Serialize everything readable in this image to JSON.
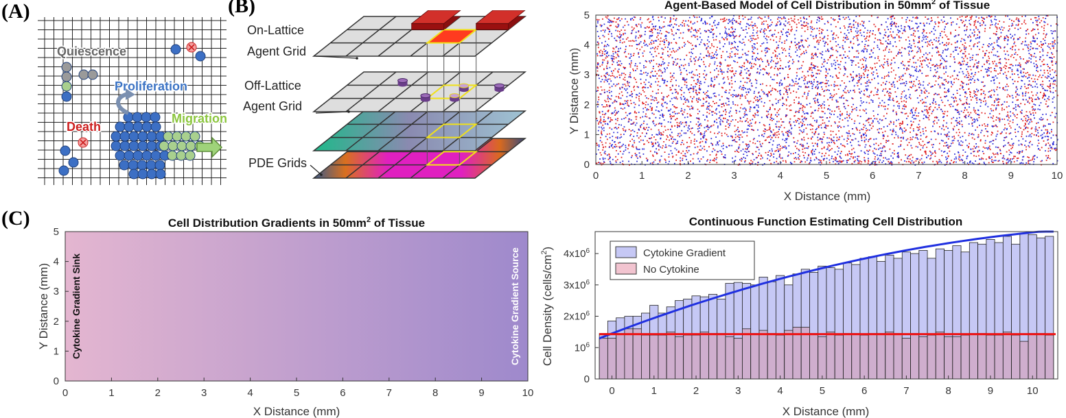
{
  "panels": {
    "a": "(A)",
    "b": "(B)",
    "c": "(C)"
  },
  "panel_a": {
    "labels": {
      "quiescence": "Quiescence",
      "proliferation": "Proliferation",
      "death": "Death",
      "migration": "Migration"
    },
    "colors": {
      "quiescence": "#666666",
      "proliferation": "#3b73c4",
      "death": "#cc1f1f",
      "migration": "#8cc63f",
      "cell_blue": "#3c6fc4",
      "cell_green": "#a9d08e",
      "cell_grey": "#9a9a9a"
    }
  },
  "panel_b": {
    "labels": {
      "on_lattice_1": "On-Lattice",
      "on_lattice_2": "Agent Grid",
      "off_lattice_1": "Off-Lattice",
      "off_lattice_2": "Agent Grid",
      "pde": "PDE Grids"
    }
  },
  "chart_data": [
    {
      "id": "abm-scatter",
      "type": "scatter",
      "title": "Agent-Based Model of Cell Distribution in 50mm",
      "title_sup": "2",
      "title_tail": " of Tissue",
      "xlabel": "X Distance (mm)",
      "ylabel": "Y Distance (mm)",
      "xlim": [
        0,
        10
      ],
      "ylim": [
        0,
        5
      ],
      "xticks": [
        "0",
        "1",
        "2",
        "3",
        "4",
        "5",
        "6",
        "7",
        "8",
        "9",
        "10"
      ],
      "yticks": [
        "0",
        "1",
        "2",
        "3",
        "4",
        "5"
      ],
      "series": [
        {
          "color": "#e02020"
        },
        {
          "color": "#2a2ad8"
        }
      ]
    },
    {
      "id": "gradient-map",
      "type": "heatmap",
      "title": "Cell Distribution Gradients in 50mm",
      "title_sup": "2",
      "title_tail": " of Tissue",
      "xlabel": "X Distance (mm)",
      "ylabel": "Y Distance (mm)",
      "xlim": [
        0,
        10
      ],
      "ylim": [
        0,
        5
      ],
      "xticks": [
        "0",
        "1",
        "2",
        "3",
        "4",
        "5",
        "6",
        "7",
        "8",
        "9",
        "10"
      ],
      "yticks": [
        "0",
        "1",
        "2",
        "3",
        "4",
        "5"
      ],
      "left_annotation": "Cytokine Gradient Sink",
      "right_annotation": "Cytokine Gradient Source",
      "color_left": "#e4b6d0",
      "color_right": "#9e89cc"
    },
    {
      "id": "density-bars",
      "type": "bar",
      "title": "Continuous Function Estimating Cell Distribution",
      "xlabel": "X Distance (mm)",
      "ylabel": "Cell Density (cells/cm",
      "ylabel_sup": "2",
      "ylabel_tail": ")",
      "xlim": [
        -0.4,
        10.6
      ],
      "ylim": [
        0,
        4.7
      ],
      "xticks": [
        "0",
        "1",
        "2",
        "3",
        "4",
        "5",
        "6",
        "7",
        "8",
        "9",
        "10"
      ],
      "yticks": [
        "0",
        "10",
        "2x10",
        "3x10",
        "4x10"
      ],
      "ytick_sup": "6",
      "x": [
        -0.2,
        0,
        0.2,
        0.4,
        0.6,
        0.8,
        1,
        1.2,
        1.4,
        1.6,
        1.8,
        2,
        2.2,
        2.4,
        2.6,
        2.8,
        3,
        3.2,
        3.4,
        3.6,
        3.8,
        4,
        4.2,
        4.4,
        4.6,
        4.8,
        5,
        5.2,
        5.4,
        5.6,
        5.8,
        6,
        6.2,
        6.4,
        6.6,
        6.8,
        7,
        7.2,
        7.4,
        7.6,
        7.8,
        8,
        8.2,
        8.4,
        8.6,
        8.8,
        9,
        9.2,
        9.4,
        9.6,
        9.8,
        10,
        10.2,
        10.4
      ],
      "series": [
        {
          "name": "Cytokine Gradient",
          "color": "#c6c8f5",
          "values": [
            1.45,
            1.85,
            1.95,
            2.0,
            2.0,
            2.1,
            2.35,
            2.1,
            2.3,
            2.5,
            2.55,
            2.65,
            2.62,
            2.7,
            2.55,
            3.05,
            3.08,
            3.05,
            3.0,
            3.25,
            3.1,
            3.3,
            3.0,
            3.35,
            3.5,
            3.4,
            3.6,
            3.55,
            3.5,
            3.7,
            3.65,
            3.85,
            3.9,
            3.75,
            3.95,
            3.85,
            4.05,
            4.0,
            4.1,
            3.85,
            4.15,
            4.1,
            4.25,
            4.05,
            4.35,
            4.3,
            4.45,
            4.35,
            4.55,
            4.3,
            4.65,
            4.6,
            4.5,
            4.55
          ]
        },
        {
          "name": "No Cytokine",
          "color": "#f2c4d0",
          "values": [
            1.3,
            1.3,
            1.45,
            1.6,
            1.6,
            1.4,
            1.4,
            1.4,
            1.5,
            1.35,
            1.4,
            1.4,
            1.5,
            1.45,
            1.45,
            1.35,
            1.3,
            1.6,
            1.45,
            1.55,
            1.45,
            1.4,
            1.55,
            1.65,
            1.65,
            1.45,
            1.35,
            1.5,
            1.4,
            1.45,
            1.45,
            1.4,
            1.45,
            1.45,
            1.5,
            1.45,
            1.3,
            1.45,
            1.35,
            1.4,
            1.5,
            1.35,
            1.35,
            1.4,
            1.45,
            1.45,
            1.4,
            1.4,
            1.5,
            1.4,
            1.2,
            1.45,
            1.45,
            1.4
          ]
        }
      ],
      "fit_lines": [
        {
          "color": "#1f2fe0",
          "equation": "1.45 + 0.5115*x - 0.0189*x^2"
        },
        {
          "color": "#ee1111",
          "y": 1.43
        }
      ]
    }
  ]
}
